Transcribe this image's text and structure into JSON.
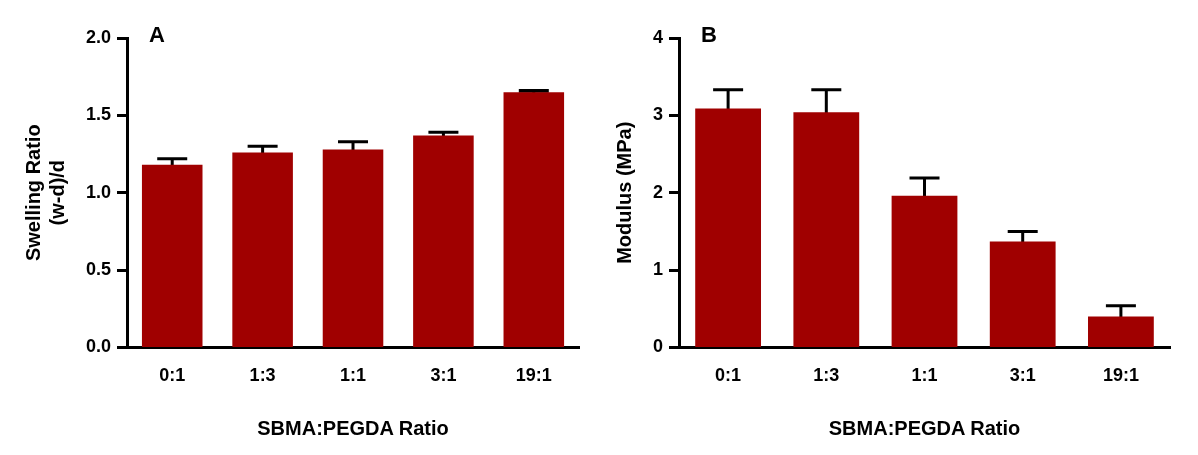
{
  "chart_data": [
    {
      "type": "bar",
      "title": "A",
      "xlabel": "SBMA:PEGDA Ratio",
      "ylabel": "Swelling Ratio\n(w-d)/d",
      "categories": [
        "0:1",
        "1:3",
        "1:1",
        "3:1",
        "19:1"
      ],
      "values": [
        1.18,
        1.26,
        1.28,
        1.37,
        1.65
      ],
      "errors": [
        0.04,
        0.04,
        0.05,
        0.02,
        0.01
      ],
      "color": "#a00000",
      "ylim": [
        0,
        2
      ],
      "yticks": [
        {
          "value": 0,
          "label": "0.0"
        },
        0.5,
        {
          "value": 1,
          "label": "1.0"
        },
        1.5,
        {
          "value": 2,
          "label": "2.0"
        }
      ],
      "grid": false,
      "legend": false
    },
    {
      "type": "bar",
      "title": "B",
      "xlabel": "SBMA:PEGDA Ratio",
      "ylabel": "Modulus (MPa)",
      "categories": [
        "0:1",
        "1:3",
        "1:1",
        "3:1",
        "19:1"
      ],
      "values": [
        3.09,
        3.04,
        1.96,
        1.37,
        0.4
      ],
      "errors": [
        0.24,
        0.29,
        0.23,
        0.13,
        0.14
      ],
      "color": "#a00000",
      "ylim": [
        0,
        4
      ],
      "yticks": [
        0,
        1,
        2,
        3,
        4
      ],
      "grid": false,
      "legend": false
    }
  ]
}
